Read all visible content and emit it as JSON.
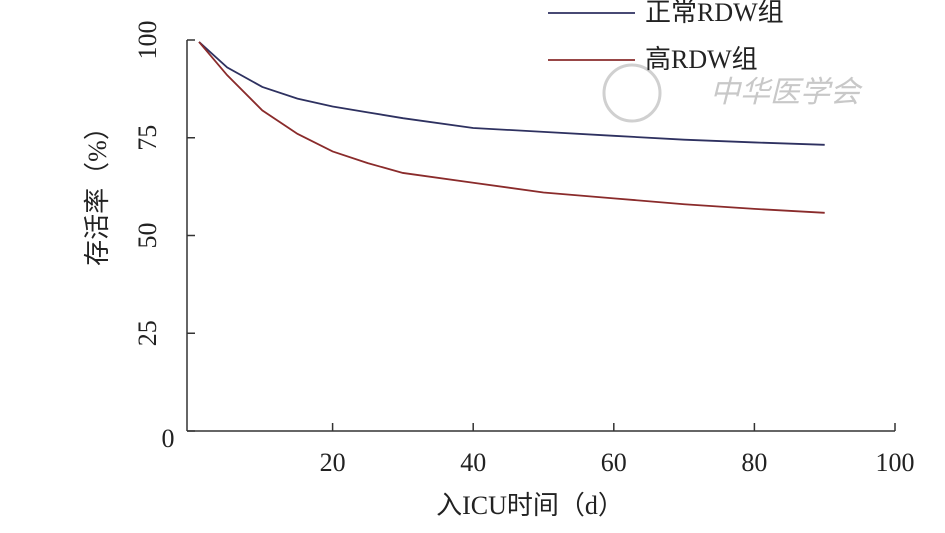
{
  "chart_data": {
    "type": "line",
    "xlabel": "入ICU时间（d）",
    "ylabel": "存活率（%）",
    "watermark": "中华医学会",
    "x": [
      1,
      5,
      10,
      15,
      20,
      25,
      30,
      40,
      50,
      60,
      70,
      80,
      90
    ],
    "series": [
      {
        "name": "正常RDW组",
        "color": "#2e3160",
        "values": [
          99.5,
          93,
          88,
          85,
          83,
          81.5,
          80,
          77.5,
          76.5,
          75.5,
          74.5,
          73.8,
          73.2
        ]
      },
      {
        "name": "高RDW组",
        "color": "#8a2b2b",
        "values": [
          99.5,
          91,
          82,
          76,
          71.5,
          68.5,
          66,
          63.5,
          61,
          59.5,
          58,
          56.8,
          55.8
        ]
      }
    ],
    "xlim": [
      0,
      100
    ],
    "xticks": [
      20,
      40,
      60,
      80,
      100
    ],
    "ylim": [
      0,
      100
    ],
    "yticks": [
      0,
      25,
      50,
      75,
      100
    ],
    "grid": false
  }
}
